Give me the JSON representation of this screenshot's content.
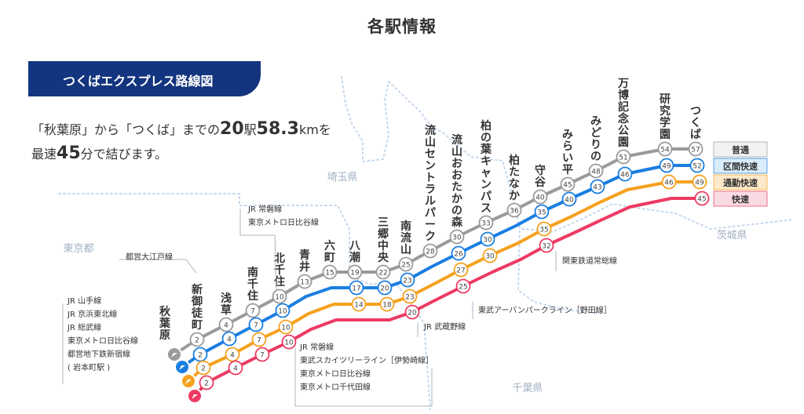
{
  "page": {
    "title": "各駅情報"
  },
  "banner": {
    "title": "つくばエクスプレス路線図"
  },
  "intro": {
    "l1a": "「秋葉原」から「つくば」までの",
    "l1b": "20",
    "l1c": "駅",
    "l1d": "58.3",
    "l1e": "kmを",
    "l2a": "最速",
    "l2b": "45",
    "l2c": "分で結びます。"
  },
  "regions": [
    "東京都",
    "埼玉県",
    "茨城県",
    "千葉県"
  ],
  "legend": [
    {
      "label": "普通",
      "color": "#9a9a9a",
      "bg": "#f2f2f2"
    },
    {
      "label": "区間快速",
      "color": "#1a7ee0",
      "bg": "#d9ecfb"
    },
    {
      "label": "通勤快速",
      "color": "#f5a11e",
      "bg": "#fde9c9"
    },
    {
      "label": "快速",
      "color": "#ec3a63",
      "bg": "#fbdbe3"
    }
  ],
  "services": [
    {
      "name": "普通",
      "color": "#9a9a9a"
    },
    {
      "name": "区間快速",
      "color": "#1a7ee0"
    },
    {
      "name": "通勤快速",
      "color": "#f5a11e"
    },
    {
      "name": "快速",
      "color": "#ec3a63"
    }
  ],
  "stations": [
    {
      "name": "秋葉原",
      "times": [
        null,
        null,
        null,
        null
      ]
    },
    {
      "name": "新御徒町",
      "times": [
        2,
        2,
        2,
        2
      ]
    },
    {
      "name": "浅草",
      "times": [
        4,
        4,
        4,
        4
      ]
    },
    {
      "name": "南千住",
      "times": [
        7,
        7,
        7,
        7
      ]
    },
    {
      "name": "北千住",
      "times": [
        10,
        10,
        10,
        10
      ]
    },
    {
      "name": "青井",
      "times": [
        13,
        null,
        null,
        null
      ]
    },
    {
      "name": "六町",
      "times": [
        15,
        null,
        null,
        null
      ]
    },
    {
      "name": "八潮",
      "times": [
        19,
        17,
        14,
        null
      ]
    },
    {
      "name": "三郷中央",
      "times": [
        22,
        20,
        18,
        null
      ]
    },
    {
      "name": "南流山",
      "times": [
        25,
        23,
        23,
        20
      ]
    },
    {
      "name": "流山セントラルパーク",
      "times": [
        28,
        null,
        null,
        null
      ]
    },
    {
      "name": "流山おおたかの森",
      "times": [
        30,
        26,
        27,
        25
      ]
    },
    {
      "name": "柏の葉キャンパス",
      "times": [
        33,
        30,
        30,
        null
      ]
    },
    {
      "name": "柏たなか",
      "times": [
        36,
        null,
        null,
        null
      ]
    },
    {
      "name": "守谷",
      "times": [
        40,
        35,
        35,
        32
      ]
    },
    {
      "name": "みらい平",
      "times": [
        45,
        40,
        null,
        null
      ]
    },
    {
      "name": "みどりの",
      "times": [
        48,
        43,
        null,
        null
      ]
    },
    {
      "name": "万博記念公園",
      "times": [
        51,
        46,
        null,
        null
      ]
    },
    {
      "name": "研究学園",
      "times": [
        54,
        49,
        46,
        null
      ]
    },
    {
      "name": "つくば",
      "times": [
        57,
        52,
        49,
        45
      ]
    }
  ],
  "transfers": [
    {
      "lines": [
        "都営大江戸線"
      ]
    },
    {
      "lines": [
        "JR 山手線",
        "JR 京浜東北線",
        "JR 総武線",
        "東京メトロ日比谷線",
        "都営地下鉄新宿線",
        "( 岩本町駅 )"
      ]
    },
    {
      "lines": [
        "JR 常磐線",
        "東京メトロ日比谷線"
      ]
    },
    {
      "lines": [
        "JR 常磐線",
        "東武スカイツリーライン［伊勢崎線］",
        "東京メトロ日比谷線",
        "東京メトロ千代田線"
      ]
    },
    {
      "lines": [
        "JR 武蔵野線"
      ]
    },
    {
      "lines": [
        "東武アーバンパークライン［野田線］"
      ]
    },
    {
      "lines": [
        "関東鉄道常総線"
      ]
    }
  ]
}
